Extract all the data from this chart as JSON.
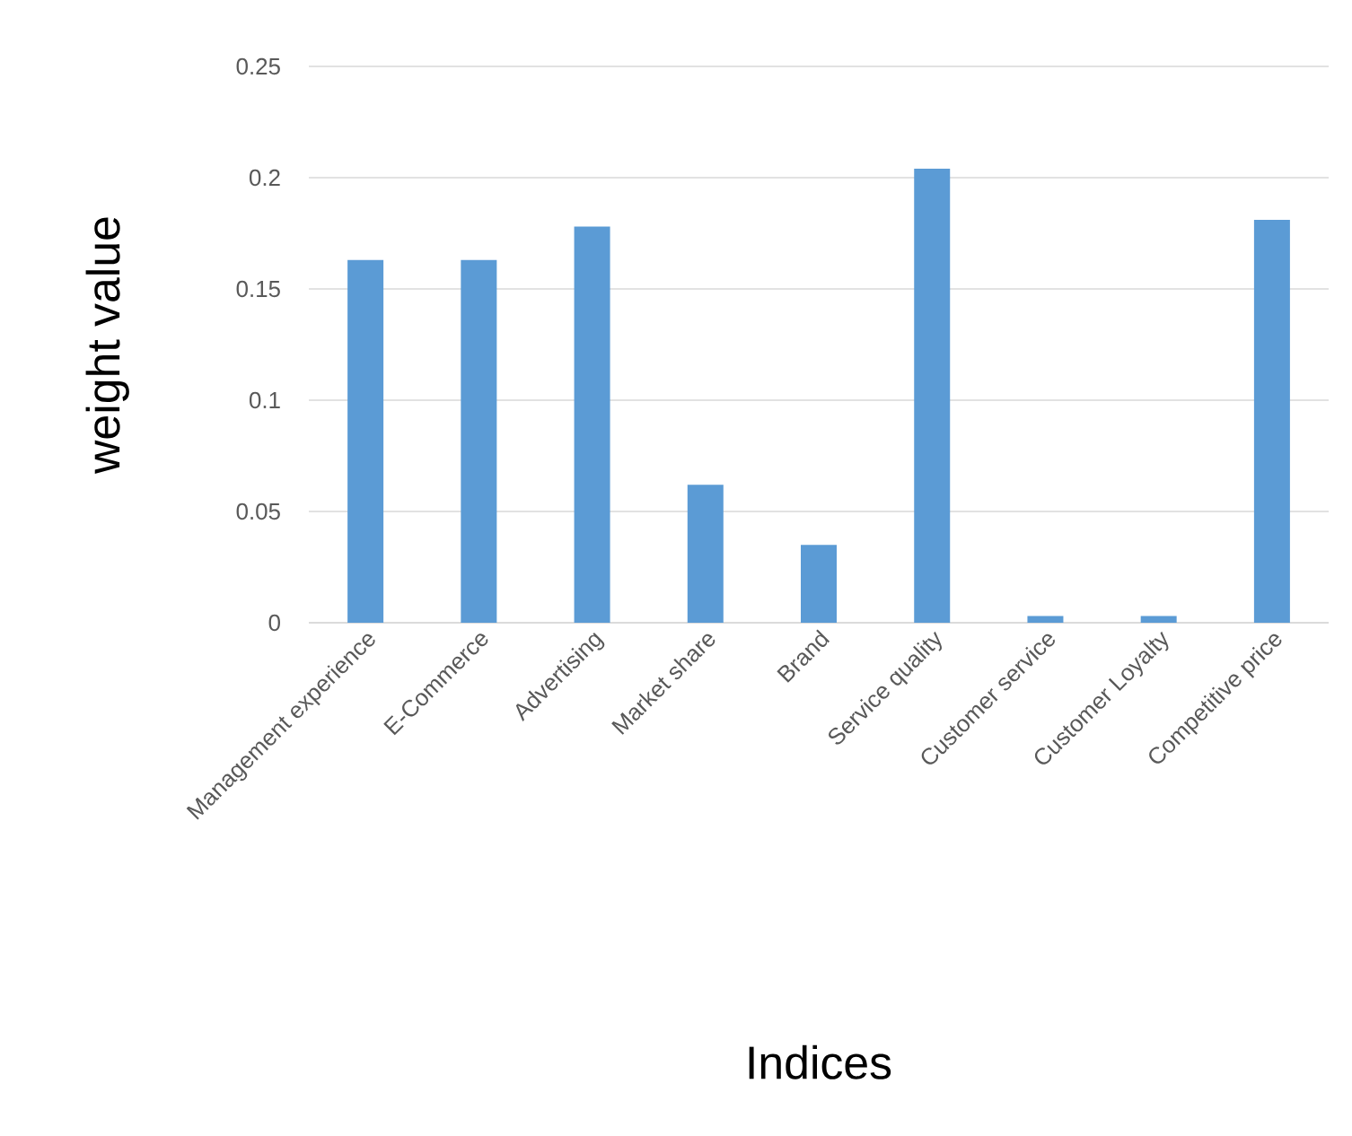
{
  "chart_data": {
    "type": "bar",
    "xlabel": "Indices",
    "ylabel": "weight value",
    "categories": [
      "Management experience",
      "E-Commerce",
      "Advertising",
      "Market share",
      "Brand",
      "Service quality",
      "Customer service",
      "Customer Loyalty",
      "Competitive price"
    ],
    "values": [
      0.163,
      0.163,
      0.178,
      0.062,
      0.035,
      0.204,
      0.003,
      0.003,
      0.181
    ],
    "color": "#5b9bd5",
    "ylim": [
      0,
      0.25
    ],
    "yticks": [
      0,
      0.05,
      0.1,
      0.15,
      0.2,
      0.25
    ],
    "grid": "y"
  }
}
